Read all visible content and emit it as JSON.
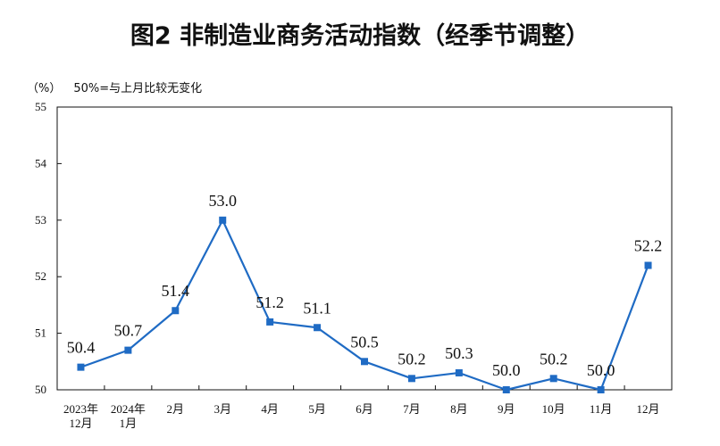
{
  "title": "图2  非制造业商务活动指数（经季节调整）",
  "unit_label": "（%）",
  "reference_note": "50%=与上月比较无变化",
  "colors": {
    "series": "#1f6bc4",
    "axis": "#111111",
    "grid": "#c8c8c8"
  },
  "chart_data": {
    "type": "line",
    "categories": [
      [
        "2023年",
        "12月"
      ],
      [
        "2024年",
        "1月"
      ],
      [
        "2月"
      ],
      [
        "3月"
      ],
      [
        "4月"
      ],
      [
        "5月"
      ],
      [
        "6月"
      ],
      [
        "7月"
      ],
      [
        "8月"
      ],
      [
        "9月"
      ],
      [
        "10月"
      ],
      [
        "11月"
      ],
      [
        "12月"
      ]
    ],
    "series": [
      {
        "values": [
          50.4,
          50.7,
          51.4,
          53.0,
          51.2,
          51.1,
          50.5,
          50.2,
          50.3,
          50.0,
          50.2,
          50.0,
          52.2
        ],
        "labels": [
          "50.4",
          "50.7",
          "51.4",
          "53.0",
          "51.2",
          "51.1",
          "50.5",
          "50.2",
          "50.3",
          "50.0",
          "50.2",
          "50.0",
          "52.2"
        ]
      }
    ],
    "ylim": [
      50,
      55
    ],
    "yticks": [
      "50",
      "51",
      "52",
      "53",
      "54",
      "55"
    ],
    "grid": false,
    "marker": "square"
  }
}
